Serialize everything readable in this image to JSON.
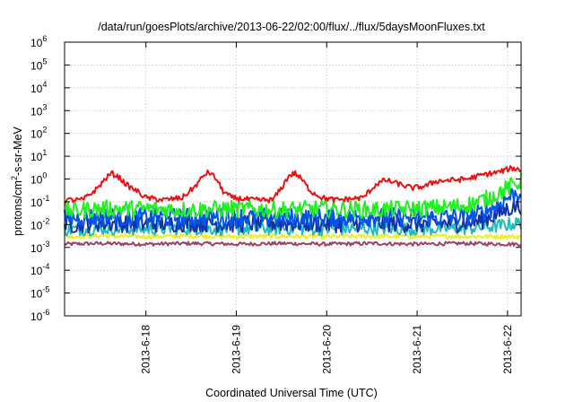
{
  "chart_data": {
    "type": "line",
    "title": "/data/run/goesPlots/archive/2013-06-22/02:00/flux/../flux/5daysMoonFluxes.txt",
    "ylabel": "protons/cm2-s-sr-MeV",
    "xlabel": "Coordinated Universal Time (UTC)",
    "yscale": "log",
    "ylim": [
      1e-06,
      1000000.0
    ],
    "xlim": [
      17.1,
      22.15
    ],
    "grid": true,
    "y_ticks": [
      {
        "v": 1e-06,
        "base": "10",
        "exp": "-6"
      },
      {
        "v": 1e-05,
        "base": "10",
        "exp": "-5"
      },
      {
        "v": 0.0001,
        "base": "10",
        "exp": "-4"
      },
      {
        "v": 0.001,
        "base": "10",
        "exp": "-3"
      },
      {
        "v": 0.01,
        "base": "10",
        "exp": "-2"
      },
      {
        "v": 0.1,
        "base": "10",
        "exp": "-1"
      },
      {
        "v": 1.0,
        "base": "10",
        "exp": "0"
      },
      {
        "v": 10.0,
        "base": "10",
        "exp": "1"
      },
      {
        "v": 100.0,
        "base": "10",
        "exp": "2"
      },
      {
        "v": 1000.0,
        "base": "10",
        "exp": "3"
      },
      {
        "v": 10000.0,
        "base": "10",
        "exp": "4"
      },
      {
        "v": 100000.0,
        "base": "10",
        "exp": "5"
      },
      {
        "v": 1000000.0,
        "base": "10",
        "exp": "6"
      }
    ],
    "x_ticks": [
      {
        "v": 18,
        "label": "2013-6-18"
      },
      {
        "v": 19,
        "label": "2013-6-19"
      },
      {
        "v": 20,
        "label": "2013-6-20"
      },
      {
        "v": 21,
        "label": "2013-6-21"
      },
      {
        "v": 22,
        "label": "2013-6-22"
      }
    ],
    "series": [
      {
        "color": "#ee1111",
        "noise": 0.12,
        "points": [
          [
            17.1,
            0.12
          ],
          [
            17.3,
            0.12
          ],
          [
            17.45,
            0.35
          ],
          [
            17.55,
            1.0
          ],
          [
            17.62,
            1.8
          ],
          [
            17.7,
            1.2
          ],
          [
            17.8,
            0.5
          ],
          [
            17.9,
            0.3
          ],
          [
            18.0,
            0.15
          ],
          [
            18.2,
            0.12
          ],
          [
            18.4,
            0.15
          ],
          [
            18.55,
            0.5
          ],
          [
            18.65,
            1.6
          ],
          [
            18.7,
            2.0
          ],
          [
            18.78,
            1.0
          ],
          [
            18.85,
            0.3
          ],
          [
            18.95,
            0.15
          ],
          [
            19.2,
            0.12
          ],
          [
            19.4,
            0.12
          ],
          [
            19.5,
            0.4
          ],
          [
            19.58,
            1.4
          ],
          [
            19.65,
            1.8
          ],
          [
            19.72,
            1.0
          ],
          [
            19.82,
            0.3
          ],
          [
            19.95,
            0.15
          ],
          [
            20.1,
            0.12
          ],
          [
            20.4,
            0.15
          ],
          [
            20.55,
            0.6
          ],
          [
            20.65,
            0.9
          ],
          [
            20.8,
            0.6
          ],
          [
            20.95,
            0.4
          ],
          [
            21.1,
            0.5
          ],
          [
            21.2,
            0.8
          ],
          [
            21.4,
            0.9
          ],
          [
            21.55,
            1.0
          ],
          [
            21.75,
            1.6
          ],
          [
            21.9,
            2.0
          ],
          [
            22.05,
            3.0
          ],
          [
            22.15,
            2.5
          ]
        ]
      },
      {
        "color": "#22ee22",
        "noise": 0.38,
        "points": [
          [
            17.1,
            0.04
          ],
          [
            17.5,
            0.05
          ],
          [
            18.0,
            0.05
          ],
          [
            18.5,
            0.045
          ],
          [
            19.0,
            0.05
          ],
          [
            19.5,
            0.045
          ],
          [
            20.0,
            0.05
          ],
          [
            20.5,
            0.045
          ],
          [
            21.0,
            0.05
          ],
          [
            21.4,
            0.06
          ],
          [
            21.6,
            0.08
          ],
          [
            21.8,
            0.15
          ],
          [
            22.0,
            0.4
          ],
          [
            22.15,
            0.8
          ]
        ]
      },
      {
        "color": "#0055ee",
        "noise": 0.42,
        "points": [
          [
            17.1,
            0.02
          ],
          [
            17.5,
            0.022
          ],
          [
            18.0,
            0.02
          ],
          [
            18.5,
            0.02
          ],
          [
            19.0,
            0.022
          ],
          [
            19.5,
            0.02
          ],
          [
            20.0,
            0.02
          ],
          [
            20.5,
            0.022
          ],
          [
            21.0,
            0.02
          ],
          [
            21.5,
            0.022
          ],
          [
            21.7,
            0.03
          ],
          [
            21.9,
            0.08
          ],
          [
            22.05,
            0.2
          ],
          [
            22.15,
            0.3
          ]
        ]
      },
      {
        "color": "#1133aa",
        "noise": 0.4,
        "points": [
          [
            17.1,
            0.01
          ],
          [
            17.5,
            0.012
          ],
          [
            18.0,
            0.011
          ],
          [
            18.5,
            0.012
          ],
          [
            19.0,
            0.011
          ],
          [
            19.5,
            0.012
          ],
          [
            20.0,
            0.011
          ],
          [
            20.5,
            0.012
          ],
          [
            21.0,
            0.011
          ],
          [
            21.5,
            0.012
          ],
          [
            21.7,
            0.015
          ],
          [
            21.9,
            0.03
          ],
          [
            22.05,
            0.06
          ],
          [
            22.15,
            0.07
          ]
        ]
      },
      {
        "color": "#22bbbb",
        "noise": 0.3,
        "points": [
          [
            17.1,
            0.006
          ],
          [
            17.5,
            0.007
          ],
          [
            18.0,
            0.0065
          ],
          [
            18.5,
            0.007
          ],
          [
            19.0,
            0.0065
          ],
          [
            19.5,
            0.007
          ],
          [
            20.0,
            0.0065
          ],
          [
            20.5,
            0.007
          ],
          [
            21.0,
            0.0065
          ],
          [
            21.5,
            0.007
          ],
          [
            21.8,
            0.008
          ],
          [
            22.0,
            0.01
          ],
          [
            22.15,
            0.012
          ]
        ]
      },
      {
        "color": "#eeee22",
        "noise": 0.1,
        "points": [
          [
            17.1,
            0.003
          ],
          [
            17.5,
            0.0032
          ],
          [
            18.0,
            0.003
          ],
          [
            18.5,
            0.0032
          ],
          [
            19.0,
            0.003
          ],
          [
            19.5,
            0.0031
          ],
          [
            20.0,
            0.003
          ],
          [
            20.5,
            0.0031
          ],
          [
            21.0,
            0.003
          ],
          [
            21.5,
            0.0031
          ],
          [
            22.0,
            0.003
          ],
          [
            22.15,
            0.003
          ]
        ]
      },
      {
        "color": "#994466",
        "noise": 0.08,
        "points": [
          [
            17.1,
            0.0014
          ],
          [
            17.5,
            0.0015
          ],
          [
            18.0,
            0.0014
          ],
          [
            18.5,
            0.0015
          ],
          [
            19.0,
            0.0014
          ],
          [
            19.5,
            0.0015
          ],
          [
            20.0,
            0.0014
          ],
          [
            20.5,
            0.0015
          ],
          [
            21.0,
            0.0014
          ],
          [
            21.5,
            0.0015
          ],
          [
            22.0,
            0.0014
          ],
          [
            22.15,
            0.0014
          ]
        ]
      }
    ]
  }
}
